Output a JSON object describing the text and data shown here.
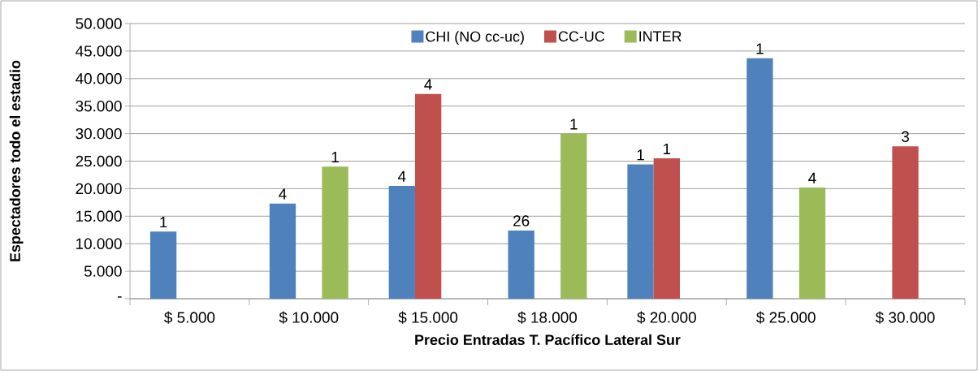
{
  "chart_data": {
    "type": "bar",
    "xlabel": "Precio Entradas T. Pacífico Lateral Sur",
    "ylabel": "Espectadores todo el estadio",
    "categories": [
      "$ 5.000",
      "$ 10.000",
      "$ 15.000",
      "$ 18.000",
      "$ 20.000",
      "$ 25.000",
      "$ 30.000"
    ],
    "series": [
      {
        "name": "CHI (NO cc-uc)",
        "color": "#4f81bd",
        "values": [
          12200,
          17300,
          20500,
          12400,
          24400,
          43700,
          null
        ]
      },
      {
        "name": "CC-UC",
        "color": "#c0504d",
        "values": [
          null,
          null,
          37200,
          null,
          25500,
          null,
          27700
        ]
      },
      {
        "name": "INTER",
        "color": "#9bbb59",
        "values": [
          null,
          24000,
          null,
          30000,
          null,
          20200,
          null
        ]
      }
    ],
    "annotations": [
      "1",
      "4",
      "1",
      "4",
      "4",
      "26",
      "1",
      "1",
      "1",
      "1",
      "4",
      "3"
    ],
    "ylim": [
      0,
      50000
    ],
    "yticks": [
      {
        "value": 0,
        "label": "-"
      },
      {
        "value": 5000,
        "label": "5.000"
      },
      {
        "value": 10000,
        "label": "10.000"
      },
      {
        "value": 15000,
        "label": "15.000"
      },
      {
        "value": 20000,
        "label": "20.000"
      },
      {
        "value": 25000,
        "label": "25.000"
      },
      {
        "value": 30000,
        "label": "30.000"
      },
      {
        "value": 35000,
        "label": "35.000"
      },
      {
        "value": 40000,
        "label": "40.000"
      },
      {
        "value": 45000,
        "label": "45.000"
      },
      {
        "value": 50000,
        "label": "50.000"
      }
    ],
    "grid": "y",
    "legend": "top"
  }
}
